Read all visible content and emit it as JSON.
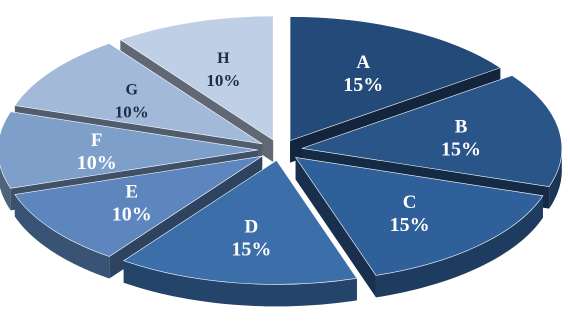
{
  "chart_data": {
    "type": "pie",
    "style": "3d-exploded",
    "title": "",
    "legend": "none",
    "slices": [
      {
        "label": "A",
        "value": 15,
        "display": "15%",
        "color": "#234a78"
      },
      {
        "label": "B",
        "value": 15,
        "display": "15%",
        "color": "#2a5589"
      },
      {
        "label": "C",
        "value": 15,
        "display": "15%",
        "color": "#30609a"
      },
      {
        "label": "D",
        "value": 15,
        "display": "15%",
        "color": "#3c6eaa"
      },
      {
        "label": "E",
        "value": 10,
        "display": "10%",
        "color": "#5c86bd"
      },
      {
        "label": "F",
        "value": 10,
        "display": "10%",
        "color": "#7f9fcb"
      },
      {
        "label": "G",
        "value": 10,
        "display": "10%",
        "color": "#a2b9da"
      },
      {
        "label": "H",
        "value": 10,
        "display": "10%",
        "color": "#bfcfe5"
      }
    ]
  }
}
